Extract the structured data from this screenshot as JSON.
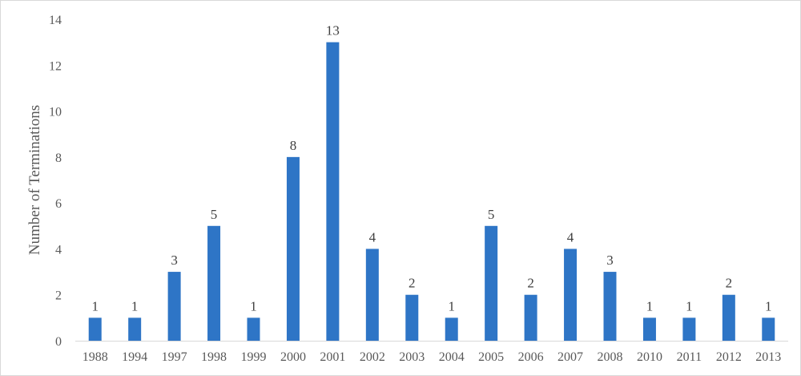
{
  "chart_data": {
    "type": "bar",
    "categories": [
      "1988",
      "1994",
      "1997",
      "1998",
      "1999",
      "2000",
      "2001",
      "2002",
      "2003",
      "2004",
      "2005",
      "2006",
      "2007",
      "2008",
      "2010",
      "2011",
      "2012",
      "2013"
    ],
    "values": [
      1,
      1,
      3,
      5,
      1,
      8,
      13,
      4,
      2,
      1,
      5,
      2,
      4,
      3,
      1,
      1,
      2,
      1
    ],
    "title": "",
    "xlabel": "",
    "ylabel": "Number of Terminations",
    "ylim": [
      0,
      14
    ],
    "yticks": [
      0,
      2,
      4,
      6,
      8,
      10,
      12,
      14
    ],
    "grid": false,
    "data_labels": true,
    "bar_color": "#2e75c6",
    "axis_color": "#d9d9d9",
    "text_color": "#595959"
  }
}
